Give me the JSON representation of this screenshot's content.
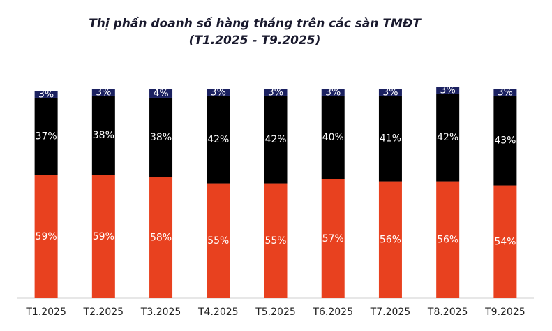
{
  "chart_data": {
    "type": "stacked-bar",
    "title": "Thị phần doanh số hàng tháng trên các sàn TMĐT",
    "subtitle": "(T1.2025 - T9.2025)",
    "categories": [
      "T1.2025",
      "T2.2025",
      "T3.2025",
      "T4.2025",
      "T5.2025",
      "T6.2025",
      "T7.2025",
      "T8.2025",
      "T9.2025"
    ],
    "ylim": [
      0,
      100
    ],
    "series": [
      {
        "color": "#e8411f",
        "values": [
          59,
          59,
          58,
          55,
          55,
          57,
          56,
          56,
          54
        ],
        "value_labels": [
          "59%",
          "59%",
          "58%",
          "55%",
          "55%",
          "57%",
          "56%",
          "56%",
          "54%"
        ]
      },
      {
        "color": "#000000",
        "values": [
          37,
          38,
          38,
          42,
          42,
          40,
          41,
          42,
          43
        ],
        "value_labels": [
          "37%",
          "38%",
          "38%",
          "42%",
          "42%",
          "40%",
          "41%",
          "42%",
          "43%"
        ]
      },
      {
        "color": "#1b2160",
        "values": [
          3,
          3,
          4,
          3,
          3,
          3,
          3,
          3,
          3
        ],
        "value_labels": [
          "3%",
          "3%",
          "4%",
          "3%",
          "3%",
          "3%",
          "3%",
          "3%",
          "3%"
        ]
      }
    ]
  }
}
